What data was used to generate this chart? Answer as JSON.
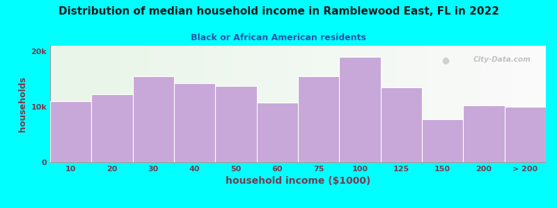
{
  "title": "Distribution of median household income in Ramblewood East, FL in 2022",
  "subtitle": "Black or African American residents",
  "xlabel": "household income ($1000)",
  "ylabel": "households",
  "background_outer": "#00FFFF",
  "bar_color": "#c8a8d8",
  "bar_edge_color": "#ffffff",
  "title_color": "#1a1a1a",
  "subtitle_color": "#2255aa",
  "axis_label_color": "#7a3a50",
  "tick_label_color": "#7a3a50",
  "categories": [
    "10",
    "20",
    "30",
    "40",
    "50",
    "60",
    "75",
    "100",
    "125",
    "150",
    "200",
    "> 200"
  ],
  "values": [
    11000,
    12200,
    15500,
    14200,
    13800,
    10800,
    15500,
    19000,
    13500,
    7800,
    10200,
    10000
  ],
  "ylim": [
    0,
    21000
  ],
  "yticks": [
    0,
    10000,
    20000
  ],
  "ytick_labels": [
    "0",
    "10k",
    "20k"
  ],
  "watermark": "City-Data.com"
}
